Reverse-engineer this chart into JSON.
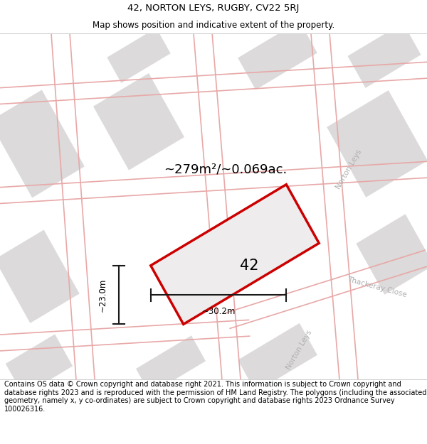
{
  "title_line1": "42, NORTON LEYS, RUGBY, CV22 5RJ",
  "title_line2": "Map shows position and indicative extent of the property.",
  "footer_text": "Contains OS data © Crown copyright and database right 2021. This information is subject to Crown copyright and database rights 2023 and is reproduced with the permission of HM Land Registry. The polygons (including the associated geometry, namely x, y co-ordinates) are subject to Crown copyright and database rights 2023 Ordnance Survey 100026316.",
  "area_label": "~279m²/~0.069ac.",
  "property_number": "42",
  "dim_width": "~30.2m",
  "dim_height": "~23.0m",
  "street_label_right": "Norton Leys",
  "street_label_bottom": "Norton Leys",
  "street_label_thackeray": "Thackeray Close",
  "map_bg_color": "#f2f0f0",
  "block_color": "#dcdada",
  "road_line_color": "#e8a8a8",
  "property_outline_color": "#cc0000",
  "dim_line_color": "#1a1a1a",
  "title_fontsize": 9.5,
  "subtitle_fontsize": 8.5,
  "footer_fontsize": 7,
  "area_fontsize": 13,
  "number_fontsize": 15,
  "street_fontsize": 7.5,
  "dim_fontsize": 8.5
}
